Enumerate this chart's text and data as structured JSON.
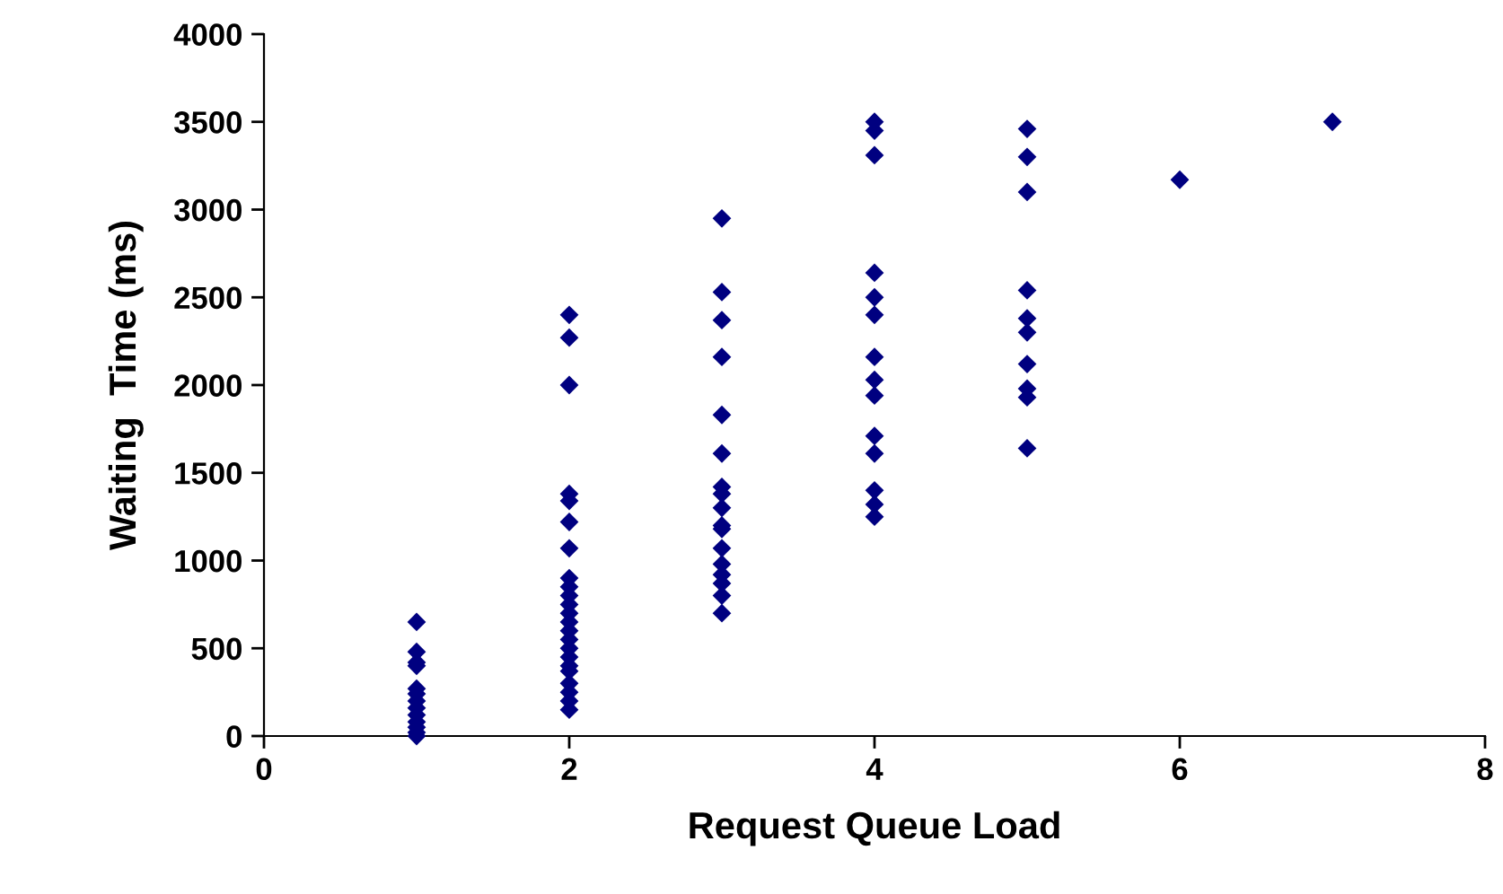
{
  "chart_data": {
    "type": "scatter",
    "xlabel": "Request Queue Load",
    "ylabel": "Waiting  Time (ms)",
    "x": [
      1,
      1,
      1,
      1,
      1,
      1,
      1,
      1,
      1,
      1,
      1,
      1,
      1,
      2,
      2,
      2,
      2,
      2,
      2,
      2,
      2,
      2,
      2,
      2,
      2,
      2,
      2,
      2,
      2,
      2,
      2,
      2,
      2,
      2,
      2,
      2,
      3,
      3,
      3,
      3,
      3,
      3,
      3,
      3,
      3,
      3,
      3,
      3,
      3,
      3,
      3,
      3,
      3,
      4,
      4,
      4,
      4,
      4,
      4,
      4,
      4,
      4,
      4,
      4,
      4,
      4,
      4,
      5,
      5,
      5,
      5,
      5,
      5,
      5,
      5,
      5,
      5,
      6,
      7
    ],
    "values": [
      650,
      480,
      420,
      400,
      270,
      240,
      200,
      160,
      120,
      80,
      50,
      20,
      0,
      2400,
      2270,
      2000,
      1380,
      1340,
      1220,
      1070,
      900,
      850,
      800,
      750,
      700,
      650,
      600,
      550,
      500,
      450,
      400,
      370,
      300,
      250,
      200,
      150,
      2950,
      2530,
      2370,
      2160,
      1830,
      1610,
      1420,
      1380,
      1300,
      1200,
      1180,
      1070,
      980,
      920,
      870,
      800,
      700,
      3500,
      3450,
      3310,
      2640,
      2500,
      2400,
      2160,
      2030,
      1940,
      1710,
      1610,
      1400,
      1320,
      1250,
      3460,
      3300,
      3100,
      2540,
      2380,
      2300,
      2120,
      1980,
      1930,
      1640,
      3170,
      3500
    ],
    "color": "#000080",
    "marker": "diamond",
    "grid": false,
    "legend": false,
    "xlim": [
      0,
      8
    ],
    "xticks": [
      0,
      2,
      4,
      6,
      8
    ],
    "ylim": [
      0,
      4000
    ],
    "yticks": [
      0,
      500,
      1000,
      1500,
      2000,
      2500,
      3000,
      3500,
      4000
    ]
  }
}
